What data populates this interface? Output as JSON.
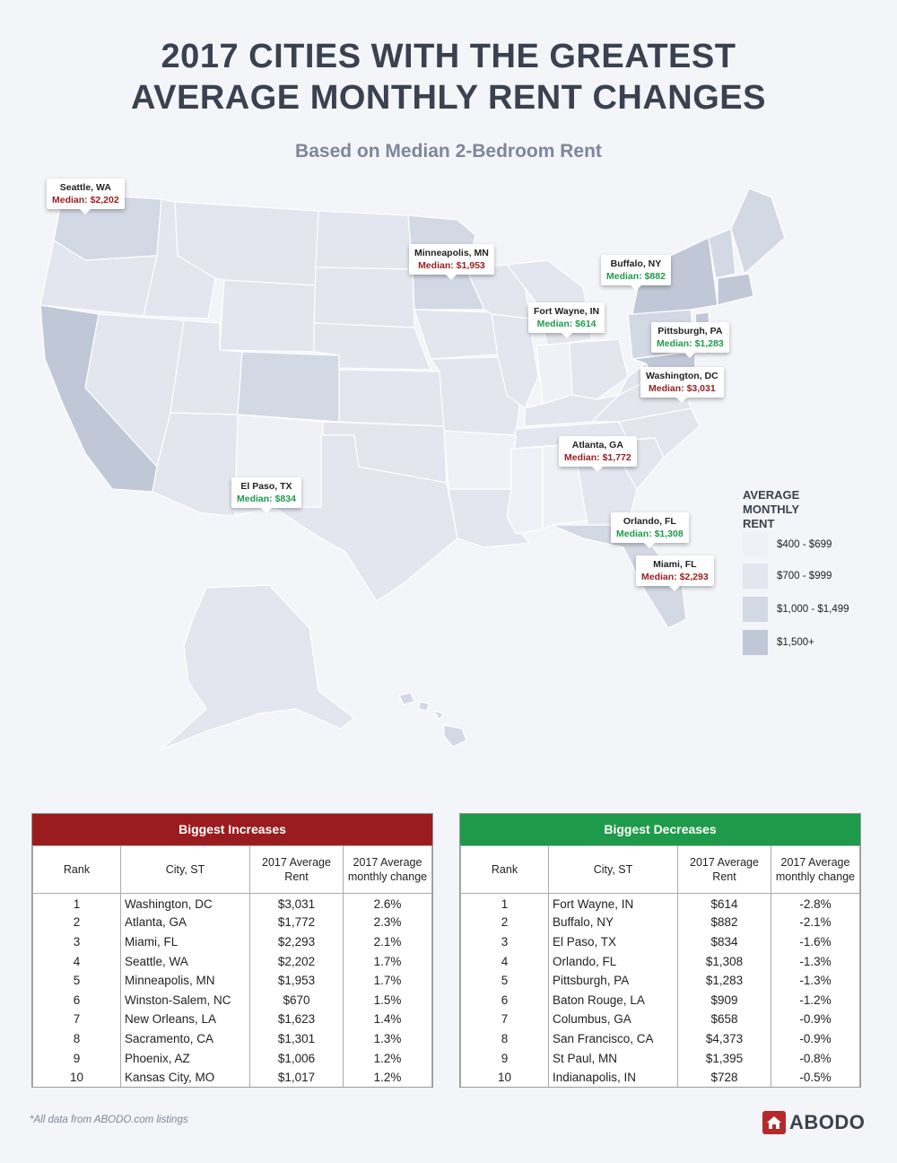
{
  "title_line1": "2017 CITIES WITH THE GREATEST",
  "title_line2": "AVERAGE MONTHLY RENT CHANGES",
  "subtitle": "Based on Median 2-Bedroom Rent",
  "callouts": [
    {
      "city": "Seattle, WA",
      "median": "Median: $2,202",
      "trend": "up"
    },
    {
      "city": "Minneapolis, MN",
      "median": "Median: $1,953",
      "trend": "up"
    },
    {
      "city": "Buffalo, NY",
      "median": "Median: $882",
      "trend": "down"
    },
    {
      "city": "Fort Wayne, IN",
      "median": "Median: $614",
      "trend": "down"
    },
    {
      "city": "Pittsburgh, PA",
      "median": "Median: $1,283",
      "trend": "down"
    },
    {
      "city": "Washington, DC",
      "median": "Median: $3,031",
      "trend": "up"
    },
    {
      "city": "Atlanta, GA",
      "median": "Median: $1,772",
      "trend": "up"
    },
    {
      "city": "El Paso, TX",
      "median": "Median: $834",
      "trend": "down"
    },
    {
      "city": "Orlando, FL",
      "median": "Median: $1,308",
      "trend": "down"
    },
    {
      "city": "Miami, FL",
      "median": "Median: $2,293",
      "trend": "up"
    }
  ],
  "legend": {
    "title": "AVERAGE MONTHLY RENT",
    "items": [
      {
        "label": "$400 - $699",
        "color": "#f0f1f6"
      },
      {
        "label": "$700 - $999",
        "color": "#e3e6ef"
      },
      {
        "label": "$1,000 - $1,499",
        "color": "#d3d8e5"
      },
      {
        "label": "$1,500+",
        "color": "#c0c8d8"
      }
    ]
  },
  "colors": {
    "increase": "#9b1c1f",
    "decrease": "#1e9b4a",
    "title": "#3a4250"
  },
  "increases": {
    "header": "Biggest Increases",
    "columns": [
      "Rank",
      "City, ST",
      "2017 Average Rent",
      "2017 Average monthly change"
    ],
    "rows": [
      [
        "1",
        "Washington, DC",
        "$3,031",
        "2.6%"
      ],
      [
        "2",
        "Atlanta, GA",
        "$1,772",
        "2.3%"
      ],
      [
        "3",
        "Miami, FL",
        "$2,293",
        "2.1%"
      ],
      [
        "4",
        "Seattle, WA",
        "$2,202",
        "1.7%"
      ],
      [
        "5",
        "Minneapolis, MN",
        "$1,953",
        "1.7%"
      ],
      [
        "6",
        "Winston-Salem, NC",
        "$670",
        "1.5%"
      ],
      [
        "7",
        "New Orleans, LA",
        "$1,623",
        "1.4%"
      ],
      [
        "8",
        "Sacramento, CA",
        "$1,301",
        "1.3%"
      ],
      [
        "9",
        "Phoenix, AZ",
        "$1,006",
        "1.2%"
      ],
      [
        "10",
        "Kansas City, MO",
        "$1,017",
        "1.2%"
      ]
    ]
  },
  "decreases": {
    "header": "Biggest Decreases",
    "columns": [
      "Rank",
      "City, ST",
      "2017 Average Rent",
      "2017 Average monthly change"
    ],
    "rows": [
      [
        "1",
        "Fort Wayne, IN",
        "$614",
        "-2.8%"
      ],
      [
        "2",
        "Buffalo, NY",
        "$882",
        "-2.1%"
      ],
      [
        "3",
        "El Paso, TX",
        "$834",
        "-1.6%"
      ],
      [
        "4",
        "Orlando, FL",
        "$1,308",
        "-1.3%"
      ],
      [
        "5",
        "Pittsburgh, PA",
        "$1,283",
        "-1.3%"
      ],
      [
        "6",
        "Baton Rouge, LA",
        "$909",
        "-1.2%"
      ],
      [
        "7",
        "Columbus, GA",
        "$658",
        "-0.9%"
      ],
      [
        "8",
        "San Francisco, CA",
        "$4,373",
        "-0.9%"
      ],
      [
        "9",
        "St Paul, MN",
        "$1,395",
        "-0.8%"
      ],
      [
        "10",
        "Indianapolis, IN",
        "$728",
        "-0.5%"
      ]
    ]
  },
  "footnote": "*All data from ABODO.com listings",
  "brand": "ABODO"
}
